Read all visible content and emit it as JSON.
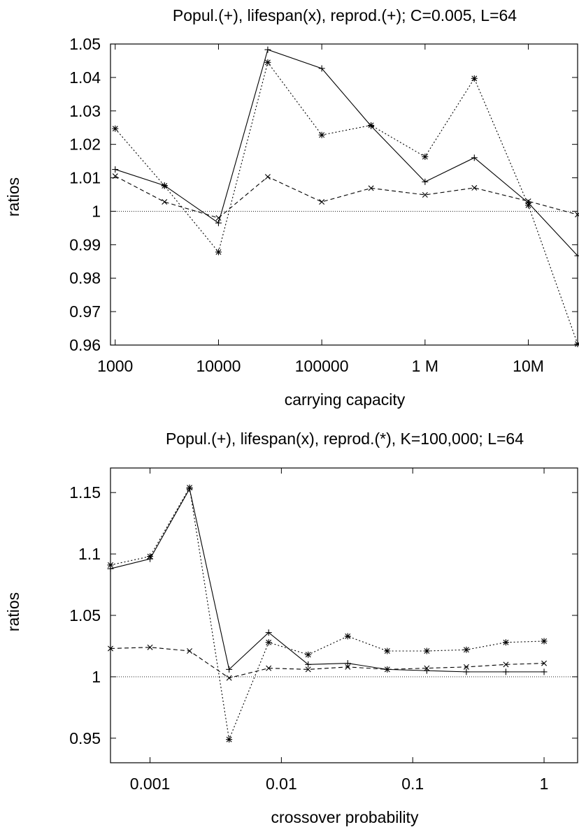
{
  "chart_data": [
    {
      "type": "line",
      "title": "Popul.(+), lifespan(x), reprod.(+); C=0.005, L=64",
      "xlabel": "carrying capacity",
      "ylabel": "ratios",
      "xscale": "log",
      "xlim": [
        900,
        30000000
      ],
      "ylim": [
        0.96,
        1.05
      ],
      "xticks": [
        {
          "value": 1000,
          "label": "1000"
        },
        {
          "value": 10000,
          "label": "10000"
        },
        {
          "value": 100000,
          "label": "100000"
        },
        {
          "value": 1000000,
          "label": "1 M"
        },
        {
          "value": 10000000,
          "label": "10M"
        }
      ],
      "yticks": [
        {
          "value": 0.96,
          "label": "0.96"
        },
        {
          "value": 0.97,
          "label": "0.97"
        },
        {
          "value": 0.98,
          "label": "0.98"
        },
        {
          "value": 0.99,
          "label": "0.99"
        },
        {
          "value": 1.0,
          "label": "1"
        },
        {
          "value": 1.01,
          "label": "1.01"
        },
        {
          "value": 1.02,
          "label": "1.02"
        },
        {
          "value": 1.03,
          "label": "1.03"
        },
        {
          "value": 1.04,
          "label": "1.04"
        },
        {
          "value": 1.05,
          "label": "1.05"
        }
      ],
      "reference_line": 1.0,
      "grid": false,
      "series": [
        {
          "name": "Popul.",
          "marker": "+",
          "line": "solid",
          "x": [
            1000,
            3000,
            10000,
            30000,
            100000,
            300000,
            1000000,
            3000000,
            10000000,
            30000000
          ],
          "values": [
            1.0125,
            1.0077,
            0.9965,
            1.0483,
            1.0427,
            1.0255,
            1.0088,
            1.016,
            1.0025,
            0.9867
          ]
        },
        {
          "name": "lifespan",
          "marker": "x",
          "line": "dashed",
          "x": [
            1000,
            3000,
            10000,
            30000,
            100000,
            300000,
            1000000,
            3000000,
            10000000,
            30000000
          ],
          "values": [
            1.0105,
            1.0028,
            0.998,
            1.0103,
            1.0028,
            1.0069,
            1.0049,
            1.007,
            1.003,
            0.999
          ]
        },
        {
          "name": "reprod.",
          "marker": "*",
          "line": "dotted",
          "x": [
            1000,
            3000,
            10000,
            30000,
            100000,
            300000,
            1000000,
            3000000,
            10000000,
            30000000
          ],
          "values": [
            1.0247,
            1.0076,
            0.9878,
            1.0445,
            1.0228,
            1.0257,
            1.0163,
            1.0397,
            1.0018,
            0.9603
          ]
        }
      ]
    },
    {
      "type": "line",
      "title": "Popul.(+), lifespan(x), reprod.(*), K=100,000; L=64",
      "xlabel": "crossover probability",
      "ylabel": "ratios",
      "xscale": "log",
      "xlim": [
        0.0005,
        1.8
      ],
      "ylim": [
        0.93,
        1.17
      ],
      "xticks": [
        {
          "value": 0.001,
          "label": "0.001"
        },
        {
          "value": 0.01,
          "label": "0.01"
        },
        {
          "value": 0.1,
          "label": "0.1"
        },
        {
          "value": 1,
          "label": "1"
        }
      ],
      "yticks": [
        {
          "value": 0.95,
          "label": "0.95"
        },
        {
          "value": 1.0,
          "label": "1"
        },
        {
          "value": 1.05,
          "label": "1.05"
        },
        {
          "value": 1.1,
          "label": "1.1"
        },
        {
          "value": 1.15,
          "label": "1.15"
        }
      ],
      "reference_line": 1.0,
      "grid": false,
      "series": [
        {
          "name": "Popul.",
          "marker": "+",
          "line": "solid",
          "x": [
            0.0005,
            0.001,
            0.002,
            0.004,
            0.008,
            0.016,
            0.032,
            0.064,
            0.128,
            0.256,
            0.512,
            1
          ],
          "values": [
            1.088,
            1.096,
            1.153,
            1.006,
            1.036,
            1.01,
            1.011,
            1.006,
            1.005,
            1.004,
            1.004,
            1.004
          ]
        },
        {
          "name": "lifespan",
          "marker": "x",
          "line": "dashed",
          "x": [
            0.0005,
            0.001,
            0.002,
            0.004,
            0.008,
            0.016,
            0.032,
            0.064,
            0.128,
            0.256,
            0.512,
            1
          ],
          "values": [
            1.023,
            1.024,
            1.021,
            0.999,
            1.007,
            1.006,
            1.008,
            1.006,
            1.007,
            1.008,
            1.01,
            1.011
          ]
        },
        {
          "name": "reprod.",
          "marker": "*",
          "line": "dotted",
          "x": [
            0.0005,
            0.001,
            0.002,
            0.004,
            0.008,
            0.016,
            0.032,
            0.064,
            0.128,
            0.256,
            0.512,
            1
          ],
          "values": [
            1.091,
            1.098,
            1.154,
            0.949,
            1.028,
            1.018,
            1.033,
            1.021,
            1.021,
            1.022,
            1.028,
            1.029
          ]
        }
      ]
    }
  ]
}
